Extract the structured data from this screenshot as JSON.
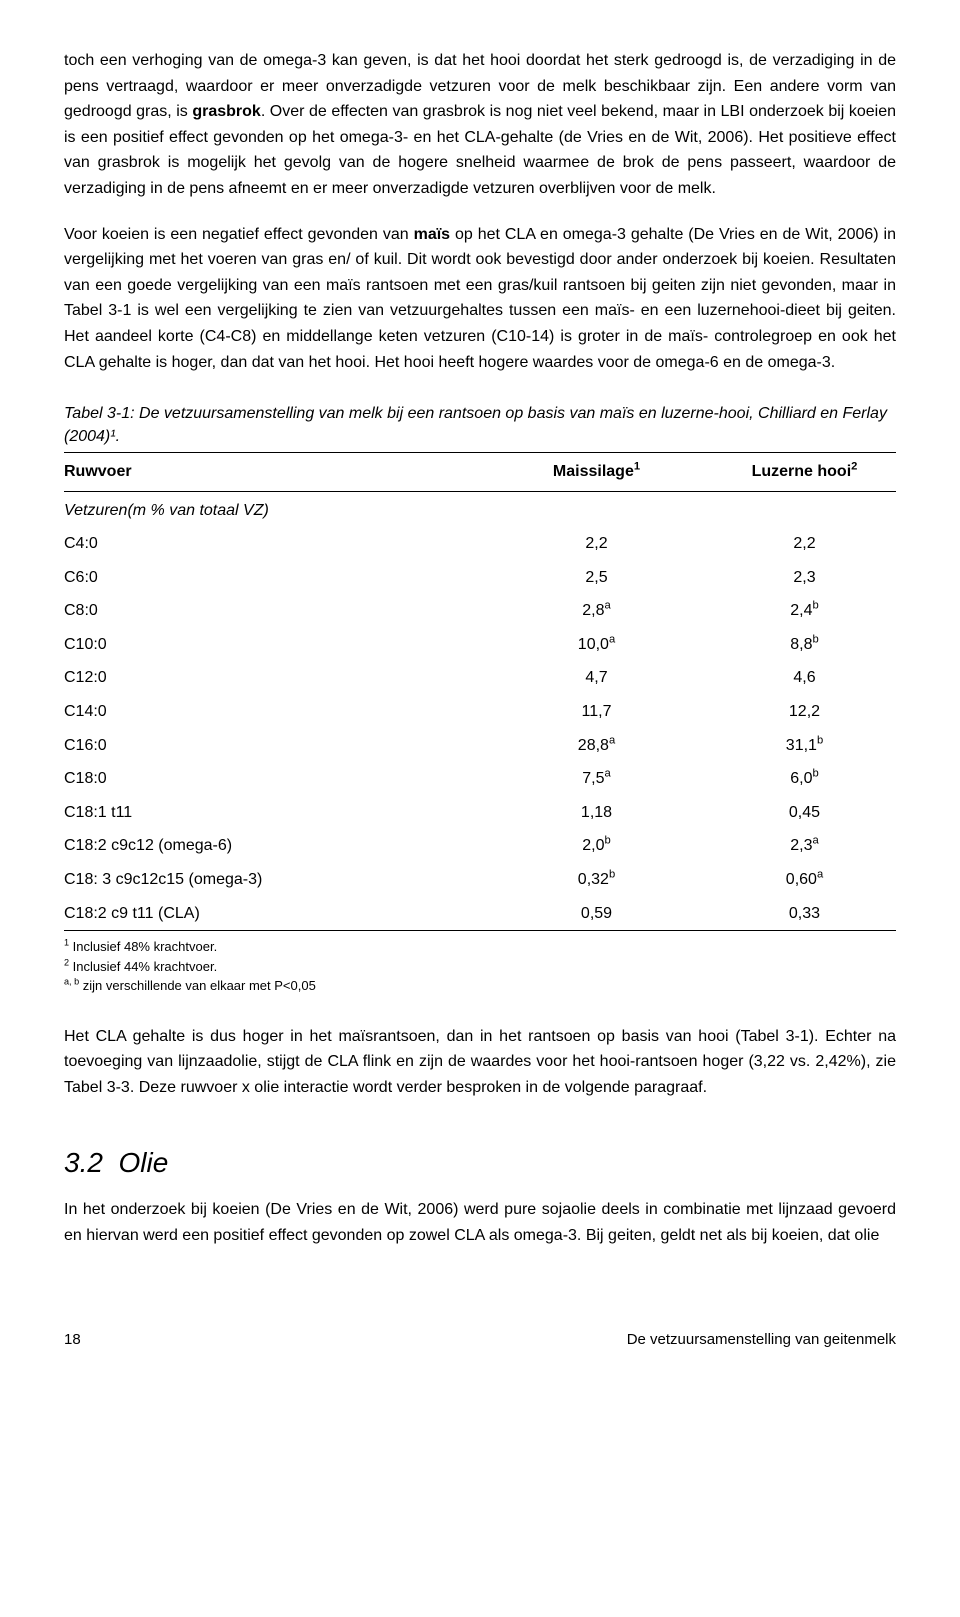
{
  "paragraphs": {
    "p1_a": "toch een verhoging van de omega-3 kan geven, is dat het hooi doordat het sterk gedroogd is, de verzadiging in de pens vertraagd, waardoor er meer onverzadigde vetzuren voor de melk beschikbaar zijn. Een andere vorm van gedroogd gras, is ",
    "p1_bold1": "grasbrok",
    "p1_b": ". Over de effecten van grasbrok is nog niet veel bekend, maar in LBI onderzoek bij koeien is een positief effect gevonden op het omega-3- en het CLA-gehalte (de Vries en de Wit, 2006). Het positieve effect van  grasbrok is mogelijk het gevolg van de hogere snelheid waarmee de brok de pens passeert, waardoor de verzadiging in de pens afneemt en er meer onverzadigde vetzuren overblijven voor de melk.",
    "p2_a": "Voor koeien is een negatief effect gevonden van ",
    "p2_bold1": "maïs",
    "p2_b": " op het CLA en omega-3 gehalte (De Vries en de Wit, 2006) in vergelijking met het voeren van gras en/ of kuil. Dit wordt ook bevestigd door ander onderzoek bij koeien. Resultaten van een goede vergelijking van een maïs rantsoen met een gras/kuil rantsoen bij geiten zijn niet gevonden, maar in Tabel 3-1 is wel een vergelijking te zien van vetzuurgehaltes tussen een maïs- en een luzernehooi-dieet bij geiten. Het aandeel korte (C4-C8) en middellange keten vetzuren (C10-14) is groter in de maïs- controlegroep en ook het CLA gehalte is hoger, dan dat van het hooi. Het hooi heeft hogere waardes voor de omega-6 en de omega-3.",
    "p3": "Het CLA gehalte is dus hoger in het maïsrantsoen, dan in het rantsoen op basis van hooi (Tabel 3-1). Echter na toevoeging van lijnzaadolie, stijgt de CLA flink en zijn de waardes voor het hooi-rantsoen hoger (3,22 vs. 2,42%), zie Tabel 3-3. Deze ruwvoer x olie interactie wordt verder besproken in de volgende paragraaf.",
    "p4": "In het onderzoek bij koeien (De Vries en de Wit, 2006) werd pure sojaolie deels in combinatie met lijnzaad gevoerd en hiervan werd een positief effect gevonden op zowel CLA als omega-3. Bij geiten, geldt net als bij koeien, dat olie"
  },
  "table": {
    "caption": "Tabel 3-1: De vetzuursamenstelling van melk bij een rantsoen op basis van maïs en luzerne-hooi, Chilliard en Ferlay (2004)¹.",
    "headers": {
      "c1": "Ruwvoer",
      "c2": "Maissilage",
      "c2sup": "1",
      "c3": "Luzerne hooi",
      "c3sup": "2"
    },
    "subheader": "Vetzuren(m % van totaal VZ)",
    "rows": [
      {
        "c1": "C4:0",
        "c2": "2,2",
        "c2s": "",
        "c3": "2,2",
        "c3s": ""
      },
      {
        "c1": "C6:0",
        "c2": "2,5",
        "c2s": "",
        "c3": "2,3",
        "c3s": ""
      },
      {
        "c1": "C8:0",
        "c2": "2,8",
        "c2s": "a",
        "c3": "2,4",
        "c3s": "b"
      },
      {
        "c1": "C10:0",
        "c2": "10,0",
        "c2s": "a",
        "c3": "8,8",
        "c3s": "b"
      },
      {
        "c1": "C12:0",
        "c2": "4,7",
        "c2s": "",
        "c3": "4,6",
        "c3s": ""
      },
      {
        "c1": "C14:0",
        "c2": "11,7",
        "c2s": "",
        "c3": "12,2",
        "c3s": ""
      },
      {
        "c1": "C16:0",
        "c2": "28,8",
        "c2s": "a",
        "c3": "31,1",
        "c3s": "b"
      },
      {
        "c1": "C18:0",
        "c2": "7,5",
        "c2s": "a",
        "c3": "6,0",
        "c3s": "b"
      },
      {
        "c1": "C18:1 t11",
        "c2": "1,18",
        "c2s": "",
        "c3": "0,45",
        "c3s": ""
      },
      {
        "c1": "C18:2 c9c12 (omega-6)",
        "c2": "2,0",
        "c2s": "b",
        "c3": "2,3",
        "c3s": "a"
      },
      {
        "c1": "C18: 3 c9c12c15 (omega-3)",
        "c2": "0,32",
        "c2s": "b",
        "c3": "0,60",
        "c3s": "a"
      },
      {
        "c1": "C18:2 c9 t11 (CLA)",
        "c2": "0,59",
        "c2s": "",
        "c3": "0,33",
        "c3s": ""
      }
    ],
    "footnotes": [
      {
        "sup": "1",
        "text": " Inclusief 48% krachtvoer."
      },
      {
        "sup": "2",
        "text": " Inclusief 44% krachtvoer."
      },
      {
        "sup": "a, b",
        "text": " zijn verschillende van elkaar met P<0,05"
      }
    ]
  },
  "section": {
    "num": "3.2",
    "title": "Olie"
  },
  "footer": {
    "page": "18",
    "title": "De vetzuursamenstelling van geitenmelk"
  }
}
